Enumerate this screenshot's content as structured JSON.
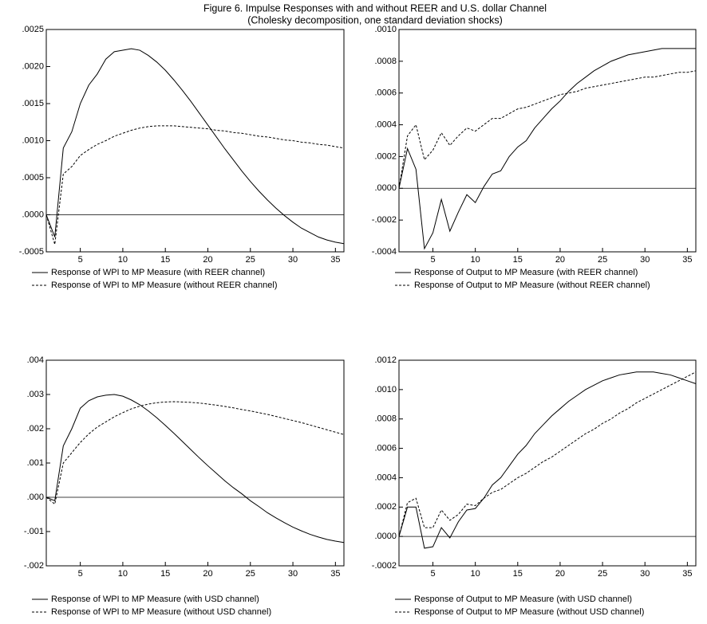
{
  "title": "Figure 6. Impulse Responses with and without REER and U.S. dollar Channel",
  "subtitle": "(Cholesky decomposition, one standard deviation shocks)",
  "chart_data": [
    {
      "type": "line",
      "x": [
        1,
        2,
        3,
        4,
        5,
        6,
        7,
        8,
        9,
        10,
        11,
        12,
        13,
        14,
        15,
        16,
        17,
        18,
        19,
        20,
        21,
        22,
        23,
        24,
        25,
        26,
        27,
        28,
        29,
        30,
        31,
        32,
        33,
        34,
        35,
        36
      ],
      "xlim": [
        1,
        36
      ],
      "xticks": [
        5,
        10,
        15,
        20,
        25,
        30,
        35
      ],
      "ylim": [
        -0.0005,
        0.0025
      ],
      "yticks": [
        {
          "value": -0.0005,
          "label": "-.0005"
        },
        {
          "value": 0,
          "label": ".0000"
        },
        {
          "value": 0.0005,
          "label": ".0005"
        },
        {
          "value": 0.001,
          "label": ".0010"
        },
        {
          "value": 0.0015,
          "label": ".0015"
        },
        {
          "value": 0.002,
          "label": ".0020"
        },
        {
          "value": 0.0025,
          "label": ".0025"
        }
      ],
      "series": [
        {
          "name": "Response of WPI to MP Measure (with REER channel)",
          "color": "#000000",
          "dashed": false,
          "values": [
            0,
            -0.0003,
            0.0009,
            0.00112,
            0.0015,
            0.00175,
            0.0019,
            0.0021,
            0.0022,
            0.00222,
            0.00224,
            0.00222,
            0.00215,
            0.00206,
            0.00195,
            0.00182,
            0.00168,
            0.00153,
            0.00137,
            0.00121,
            0.00105,
            0.00089,
            0.00074,
            0.00059,
            0.00045,
            0.00032,
            0.0002,
            9e-05,
            -1e-05,
            -0.0001,
            -0.00018,
            -0.00024,
            -0.0003,
            -0.00034,
            -0.00037,
            -0.00039
          ]
        },
        {
          "name": "Response of WPI to MP Measure (without REER channel)",
          "color": "#000000",
          "dashed": true,
          "values": [
            0,
            -0.0004,
            0.00055,
            0.00065,
            0.0008,
            0.00088,
            0.00095,
            0.001,
            0.00106,
            0.0011,
            0.00114,
            0.00117,
            0.00119,
            0.0012,
            0.0012,
            0.0012,
            0.00119,
            0.00118,
            0.00117,
            0.00116,
            0.00114,
            0.00113,
            0.00111,
            0.0011,
            0.00108,
            0.00106,
            0.00105,
            0.00103,
            0.00101,
            0.001,
            0.00098,
            0.00097,
            0.00095,
            0.00094,
            0.00092,
            0.0009
          ]
        }
      ]
    },
    {
      "type": "line",
      "x": [
        1,
        2,
        3,
        4,
        5,
        6,
        7,
        8,
        9,
        10,
        11,
        12,
        13,
        14,
        15,
        16,
        17,
        18,
        19,
        20,
        21,
        22,
        23,
        24,
        25,
        26,
        27,
        28,
        29,
        30,
        31,
        32,
        33,
        34,
        35,
        36
      ],
      "xlim": [
        1,
        36
      ],
      "xticks": [
        5,
        10,
        15,
        20,
        25,
        30,
        35
      ],
      "ylim": [
        -0.0004,
        0.001
      ],
      "yticks": [
        {
          "value": -0.0004,
          "label": "-.0004"
        },
        {
          "value": -0.0002,
          "label": "-.0002"
        },
        {
          "value": 0,
          "label": ".0000"
        },
        {
          "value": 0.0002,
          "label": ".0002"
        },
        {
          "value": 0.0004,
          "label": ".0004"
        },
        {
          "value": 0.0006,
          "label": ".0006"
        },
        {
          "value": 0.0008,
          "label": ".0008"
        },
        {
          "value": 0.001,
          "label": ".0010"
        }
      ],
      "series": [
        {
          "name": "Response of Output to MP Measure (with REER channel)",
          "color": "#000000",
          "dashed": false,
          "values": [
            0,
            0.00025,
            0.00012,
            -0.00038,
            -0.00028,
            -7e-05,
            -0.00027,
            -0.00015,
            -4e-05,
            -9e-05,
            1e-05,
            9e-05,
            0.00011,
            0.0002,
            0.00026,
            0.0003,
            0.00038,
            0.00044,
            0.0005,
            0.00055,
            0.00061,
            0.00066,
            0.0007,
            0.00074,
            0.00077,
            0.0008,
            0.00082,
            0.00084,
            0.00085,
            0.00086,
            0.00087,
            0.00088,
            0.00088,
            0.00088,
            0.00088,
            0.00088
          ]
        },
        {
          "name": "Response of Output to MP Measure (without REER channel)",
          "color": "#000000",
          "dashed": true,
          "values": [
            0,
            0.00033,
            0.0004,
            0.00018,
            0.00024,
            0.00035,
            0.00027,
            0.00033,
            0.00038,
            0.00036,
            0.0004,
            0.00044,
            0.00044,
            0.00047,
            0.0005,
            0.00051,
            0.00053,
            0.00055,
            0.00057,
            0.00059,
            0.0006,
            0.00061,
            0.00063,
            0.00064,
            0.00065,
            0.00066,
            0.00067,
            0.00068,
            0.00069,
            0.0007,
            0.0007,
            0.00071,
            0.00072,
            0.00073,
            0.00073,
            0.00074
          ]
        }
      ]
    },
    {
      "type": "line",
      "x": [
        1,
        2,
        3,
        4,
        5,
        6,
        7,
        8,
        9,
        10,
        11,
        12,
        13,
        14,
        15,
        16,
        17,
        18,
        19,
        20,
        21,
        22,
        23,
        24,
        25,
        26,
        27,
        28,
        29,
        30,
        31,
        32,
        33,
        34,
        35,
        36
      ],
      "xlim": [
        1,
        36
      ],
      "xticks": [
        5,
        10,
        15,
        20,
        25,
        30,
        35
      ],
      "ylim": [
        -0.002,
        0.004
      ],
      "yticks": [
        {
          "value": -0.002,
          "label": "-.002"
        },
        {
          "value": -0.001,
          "label": "-.001"
        },
        {
          "value": 0,
          "label": ".000"
        },
        {
          "value": 0.001,
          "label": ".001"
        },
        {
          "value": 0.002,
          "label": ".002"
        },
        {
          "value": 0.003,
          "label": ".003"
        },
        {
          "value": 0.004,
          "label": ".004"
        }
      ],
      "series": [
        {
          "name": "Response of WPI to MP Measure (with USD channel)",
          "color": "#000000",
          "dashed": false,
          "values": [
            0,
            -0.0001,
            0.0015,
            0.002,
            0.0026,
            0.00282,
            0.00293,
            0.00298,
            0.003,
            0.00295,
            0.00284,
            0.0027,
            0.00252,
            0.00232,
            0.0021,
            0.00187,
            0.00163,
            0.00139,
            0.00115,
            0.00092,
            0.0007,
            0.00048,
            0.00028,
            0.0001,
            -0.0001,
            -0.00027,
            -0.00045,
            -0.0006,
            -0.00074,
            -0.00087,
            -0.00098,
            -0.00108,
            -0.00116,
            -0.00123,
            -0.00128,
            -0.00132
          ]
        },
        {
          "name": "Response of WPI to MP Measure (without USD channel)",
          "color": "#000000",
          "dashed": true,
          "values": [
            0,
            -0.0002,
            0.001,
            0.0013,
            0.0016,
            0.00185,
            0.00205,
            0.0022,
            0.00235,
            0.00247,
            0.00258,
            0.00266,
            0.00272,
            0.00276,
            0.00278,
            0.00279,
            0.00278,
            0.00277,
            0.00275,
            0.00272,
            0.00269,
            0.00265,
            0.00261,
            0.00256,
            0.00252,
            0.00247,
            0.00242,
            0.00236,
            0.0023,
            0.00224,
            0.00218,
            0.00211,
            0.00204,
            0.00197,
            0.0019,
            0.00183
          ]
        }
      ]
    },
    {
      "type": "line",
      "x": [
        1,
        2,
        3,
        4,
        5,
        6,
        7,
        8,
        9,
        10,
        11,
        12,
        13,
        14,
        15,
        16,
        17,
        18,
        19,
        20,
        21,
        22,
        23,
        24,
        25,
        26,
        27,
        28,
        29,
        30,
        31,
        32,
        33,
        34,
        35,
        36
      ],
      "xlim": [
        1,
        36
      ],
      "xticks": [
        5,
        10,
        15,
        20,
        25,
        30,
        35
      ],
      "ylim": [
        -0.0002,
        0.0012
      ],
      "yticks": [
        {
          "value": -0.0002,
          "label": "-.0002"
        },
        {
          "value": 0,
          "label": ".0000"
        },
        {
          "value": 0.0002,
          "label": ".0002"
        },
        {
          "value": 0.0004,
          "label": ".0004"
        },
        {
          "value": 0.0006,
          "label": ".0006"
        },
        {
          "value": 0.0008,
          "label": ".0008"
        },
        {
          "value": 0.001,
          "label": ".0010"
        },
        {
          "value": 0.0012,
          "label": ".0012"
        }
      ],
      "series": [
        {
          "name": "Response of Output to MP Measure (with USD channel)",
          "color": "#000000",
          "dashed": false,
          "values": [
            0,
            0.0002,
            0.0002,
            -8e-05,
            -7e-05,
            6e-05,
            -1e-05,
            0.0001,
            0.00018,
            0.00019,
            0.00026,
            0.00035,
            0.0004,
            0.00048,
            0.00056,
            0.00062,
            0.0007,
            0.00076,
            0.00082,
            0.00087,
            0.00092,
            0.00096,
            0.001,
            0.00103,
            0.00106,
            0.00108,
            0.0011,
            0.00111,
            0.00112,
            0.00112,
            0.00112,
            0.00111,
            0.0011,
            0.00108,
            0.00106,
            0.00104
          ]
        },
        {
          "name": "Response of Output to MP Measure (without USD channel)",
          "color": "#000000",
          "dashed": true,
          "values": [
            0,
            0.00023,
            0.00026,
            6e-05,
            6e-05,
            0.00018,
            0.00011,
            0.00015,
            0.00022,
            0.00021,
            0.00026,
            0.0003,
            0.00032,
            0.00036,
            0.0004,
            0.00043,
            0.00047,
            0.00051,
            0.00054,
            0.00058,
            0.00062,
            0.00066,
            0.0007,
            0.00073,
            0.00077,
            0.0008,
            0.00084,
            0.00087,
            0.00091,
            0.00094,
            0.00097,
            0.001,
            0.00103,
            0.00106,
            0.00109,
            0.00112
          ]
        }
      ]
    }
  ]
}
